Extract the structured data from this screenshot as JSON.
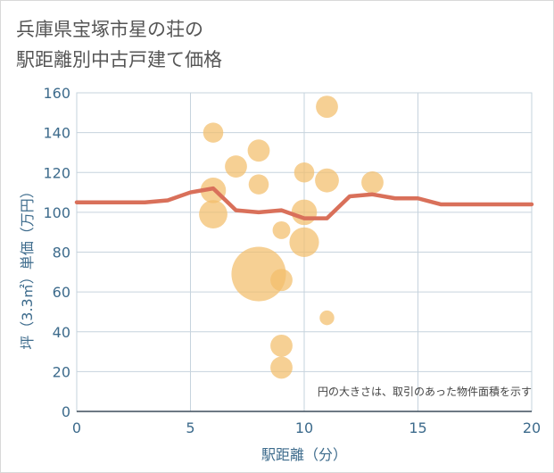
{
  "title_lines": [
    "兵庫県宝塚市星の荘の",
    "駅距離別中古戸建て価格"
  ],
  "chart_data": {
    "type": "scatter",
    "xlabel": "駅距離（分）",
    "ylabel": "坪（3.3㎡）単価（万円）",
    "xlim": [
      0,
      20
    ],
    "ylim": [
      0,
      160
    ],
    "x_ticks": [
      0,
      5,
      10,
      15,
      20
    ],
    "y_ticks": [
      0,
      20,
      40,
      60,
      80,
      100,
      120,
      140,
      160
    ],
    "note": "円の大きさは、取引のあった物件面積を示す",
    "bubble_color": "#f3be6b",
    "line_color": "#d9705a",
    "points": [
      {
        "x": 6,
        "y": 140,
        "size": 3
      },
      {
        "x": 6,
        "y": 111,
        "size": 6
      },
      {
        "x": 6,
        "y": 99,
        "size": 8
      },
      {
        "x": 7,
        "y": 123,
        "size": 4
      },
      {
        "x": 8,
        "y": 131,
        "size": 4
      },
      {
        "x": 8,
        "y": 114,
        "size": 3
      },
      {
        "x": 8,
        "y": 69,
        "size": 40
      },
      {
        "x": 9,
        "y": 91,
        "size": 2
      },
      {
        "x": 9,
        "y": 66,
        "size": 4
      },
      {
        "x": 9,
        "y": 33,
        "size": 4
      },
      {
        "x": 9,
        "y": 22,
        "size": 4
      },
      {
        "x": 10,
        "y": 120,
        "size": 3
      },
      {
        "x": 10,
        "y": 100,
        "size": 6
      },
      {
        "x": 10,
        "y": 85,
        "size": 9
      },
      {
        "x": 11,
        "y": 153,
        "size": 4
      },
      {
        "x": 11,
        "y": 116,
        "size": 5
      },
      {
        "x": 11,
        "y": 47,
        "size": 1
      },
      {
        "x": 13,
        "y": 115,
        "size": 4
      }
    ],
    "trend": {
      "x": [
        0,
        1,
        2,
        3,
        4,
        5,
        6,
        7,
        8,
        9,
        10,
        11,
        12,
        13,
        14,
        15,
        16,
        17,
        18,
        19,
        20
      ],
      "y": [
        105,
        105,
        105,
        105,
        106,
        110,
        112,
        101,
        100,
        101,
        97,
        97,
        108,
        109,
        107,
        107,
        104,
        104,
        104,
        104,
        104
      ]
    }
  }
}
